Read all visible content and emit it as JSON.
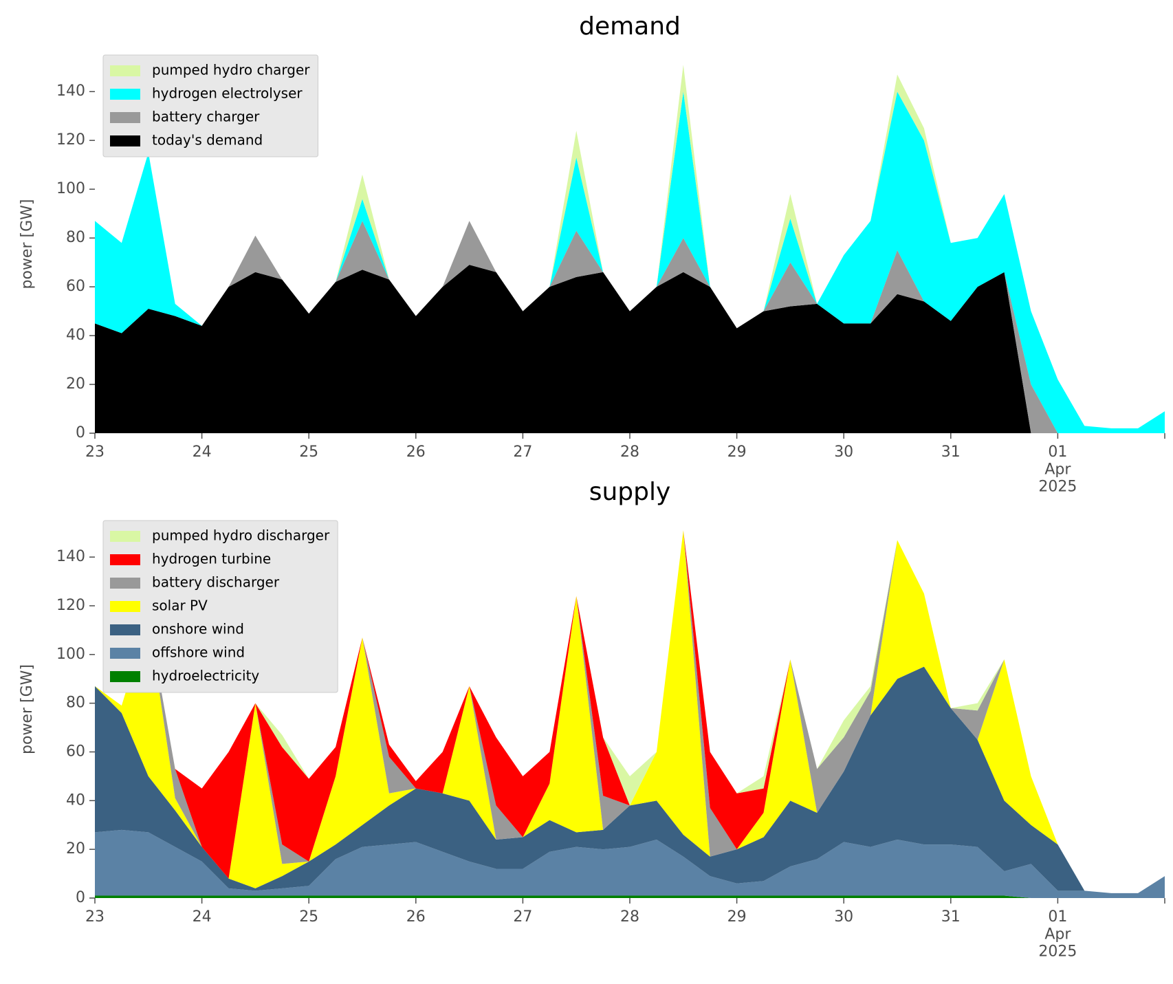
{
  "chart_data": [
    {
      "type": "stacked_area",
      "title": "demand",
      "y_label": "power [GW]",
      "legend": "upper left",
      "x": [
        0,
        0.25,
        0.5,
        0.75,
        1,
        1.25,
        1.5,
        1.75,
        2,
        2.25,
        2.5,
        2.75,
        3,
        3.25,
        3.5,
        3.75,
        4,
        4.25,
        4.5,
        4.75,
        5,
        5.25,
        5.5,
        5.75,
        6,
        6.25,
        6.5,
        6.75,
        7,
        7.25,
        7.5,
        7.75,
        8,
        8.25,
        8.5,
        8.75,
        9,
        9.25,
        9.5,
        9.75,
        10
      ],
      "xlim": [
        0,
        10
      ],
      "xticks": [
        {
          "value": 0,
          "label": "23"
        },
        {
          "value": 1,
          "label": "24"
        },
        {
          "value": 2,
          "label": "25"
        },
        {
          "value": 3,
          "label": "26"
        },
        {
          "value": 4,
          "label": "27"
        },
        {
          "value": 5,
          "label": "28"
        },
        {
          "value": 6,
          "label": "29"
        },
        {
          "value": 7,
          "label": "30"
        },
        {
          "value": 8,
          "label": "31"
        },
        {
          "value": 9,
          "label": "01\nApr\n2025"
        },
        {
          "value": 10,
          "label": ""
        }
      ],
      "ylim": [
        0,
        155
      ],
      "yticks": [
        0,
        20,
        40,
        60,
        80,
        100,
        120,
        140
      ],
      "series": [
        {
          "name": "today's demand",
          "color": "#000000",
          "values": [
            45,
            41,
            51,
            48,
            44,
            60,
            66,
            63,
            49,
            62,
            67,
            63,
            48,
            60,
            69,
            66,
            50,
            60,
            64,
            66,
            50,
            60,
            66,
            60,
            43,
            50,
            52,
            53,
            45,
            45,
            57,
            54,
            46,
            60,
            66,
            0,
            0,
            0,
            0,
            0,
            0
          ]
        },
        {
          "name": "battery charger",
          "color": "#999999",
          "values": [
            0,
            0,
            0,
            0,
            0,
            0,
            15,
            0,
            0,
            0,
            20,
            0,
            0,
            0,
            18,
            0,
            0,
            0,
            19,
            0,
            0,
            0,
            14,
            0,
            0,
            0,
            18,
            0,
            0,
            0,
            18,
            0,
            0,
            0,
            0,
            20,
            0,
            0,
            0,
            0,
            0
          ]
        },
        {
          "name": "hydrogen electrolyser",
          "color": "#00ffff",
          "values": [
            42,
            37,
            64,
            5,
            0,
            0,
            0,
            0,
            0,
            0,
            9,
            0,
            0,
            0,
            0,
            0,
            0,
            0,
            30,
            0,
            0,
            0,
            60,
            0,
            0,
            0,
            18,
            0,
            28,
            42,
            65,
            66,
            32,
            20,
            32,
            30,
            22,
            3,
            2,
            2,
            9
          ]
        },
        {
          "name": "pumped hydro charger",
          "color": "#d9f7a4",
          "values": [
            0,
            0,
            0,
            0,
            0,
            0,
            0,
            0,
            0,
            0,
            10,
            0,
            0,
            0,
            0,
            0,
            0,
            0,
            11,
            0,
            0,
            0,
            11,
            0,
            0,
            0,
            10,
            0,
            0,
            0,
            7,
            5,
            0,
            0,
            0,
            0,
            0,
            0,
            0,
            0,
            0
          ]
        }
      ]
    },
    {
      "type": "stacked_area",
      "title": "supply",
      "y_label": "power [GW]",
      "legend": "upper left",
      "x": [
        0,
        0.25,
        0.5,
        0.75,
        1,
        1.25,
        1.5,
        1.75,
        2,
        2.25,
        2.5,
        2.75,
        3,
        3.25,
        3.5,
        3.75,
        4,
        4.25,
        4.5,
        4.75,
        5,
        5.25,
        5.5,
        5.75,
        6,
        6.25,
        6.5,
        6.75,
        7,
        7.25,
        7.5,
        7.75,
        8,
        8.25,
        8.5,
        8.75,
        9,
        9.25,
        9.5,
        9.75,
        10
      ],
      "xlim": [
        0,
        10
      ],
      "xticks": [
        {
          "value": 0,
          "label": "23"
        },
        {
          "value": 1,
          "label": "24"
        },
        {
          "value": 2,
          "label": "25"
        },
        {
          "value": 3,
          "label": "26"
        },
        {
          "value": 4,
          "label": "27"
        },
        {
          "value": 5,
          "label": "28"
        },
        {
          "value": 6,
          "label": "29"
        },
        {
          "value": 7,
          "label": "30"
        },
        {
          "value": 8,
          "label": "31"
        },
        {
          "value": 9,
          "label": "01\nApr\n2025"
        },
        {
          "value": 10,
          "label": ""
        }
      ],
      "ylim": [
        0,
        155
      ],
      "yticks": [
        0,
        20,
        40,
        60,
        80,
        100,
        120,
        140
      ],
      "series": [
        {
          "name": "hydroelectricity",
          "color": "#008000",
          "values": [
            1,
            1,
            1,
            1,
            1,
            1,
            1,
            1,
            1,
            1,
            1,
            1,
            1,
            1,
            1,
            1,
            1,
            1,
            1,
            1,
            1,
            1,
            1,
            1,
            1,
            1,
            1,
            1,
            1,
            1,
            1,
            1,
            1,
            1,
            1,
            0,
            0,
            0,
            0,
            0,
            0
          ]
        },
        {
          "name": "offshore wind",
          "color": "#5b82a5",
          "values": [
            26,
            27,
            26,
            20,
            14,
            3,
            2,
            3,
            4,
            15,
            20,
            21,
            22,
            18,
            14,
            11,
            11,
            18,
            20,
            19,
            20,
            23,
            16,
            8,
            5,
            6,
            12,
            15,
            22,
            20,
            23,
            21,
            21,
            20,
            10,
            14,
            3,
            3,
            2,
            2,
            9
          ]
        },
        {
          "name": "onshore wind",
          "color": "#3b6182",
          "values": [
            60,
            48,
            23,
            15,
            6,
            4,
            1,
            5,
            10,
            6,
            9,
            16,
            22,
            24,
            25,
            12,
            13,
            13,
            6,
            8,
            17,
            16,
            9,
            8,
            14,
            18,
            27,
            19,
            29,
            54,
            66,
            73,
            56,
            44,
            29,
            16,
            19,
            0,
            0,
            0,
            0
          ]
        },
        {
          "name": "solar PV",
          "color": "#ffff00",
          "values": [
            0,
            3,
            65,
            5,
            0,
            0,
            76,
            5,
            0,
            28,
            77,
            5,
            0,
            0,
            47,
            0,
            0,
            15,
            97,
            0,
            0,
            20,
            125,
            0,
            0,
            10,
            58,
            0,
            0,
            0,
            57,
            30,
            0,
            0,
            58,
            20,
            0,
            0,
            0,
            0,
            0
          ]
        },
        {
          "name": "battery discharger",
          "color": "#999999",
          "values": [
            0,
            0,
            0,
            12,
            0,
            0,
            0,
            8,
            0,
            0,
            0,
            15,
            0,
            0,
            0,
            14,
            0,
            0,
            0,
            14,
            0,
            0,
            0,
            20,
            0,
            0,
            0,
            18,
            14,
            10,
            0,
            0,
            0,
            12,
            0,
            0,
            0,
            0,
            0,
            0,
            0
          ]
        },
        {
          "name": "hydrogen turbine",
          "color": "#ff0000",
          "values": [
            0,
            0,
            0,
            0,
            24,
            52,
            0,
            40,
            34,
            12,
            0,
            5,
            3,
            17,
            0,
            28,
            25,
            13,
            0,
            24,
            0,
            0,
            0,
            23,
            23,
            10,
            0,
            0,
            0,
            0,
            0,
            0,
            0,
            0,
            0,
            0,
            0,
            0,
            0,
            0,
            0
          ]
        },
        {
          "name": "pumped hydro discharger",
          "color": "#d9f7a4",
          "values": [
            0,
            0,
            0,
            0,
            0,
            0,
            0,
            5,
            0,
            0,
            0,
            0,
            0,
            0,
            0,
            0,
            0,
            0,
            0,
            0,
            12,
            0,
            0,
            0,
            0,
            5,
            0,
            0,
            7,
            2,
            0,
            0,
            0,
            3,
            0,
            0,
            0,
            0,
            0,
            0,
            0
          ]
        }
      ]
    }
  ]
}
